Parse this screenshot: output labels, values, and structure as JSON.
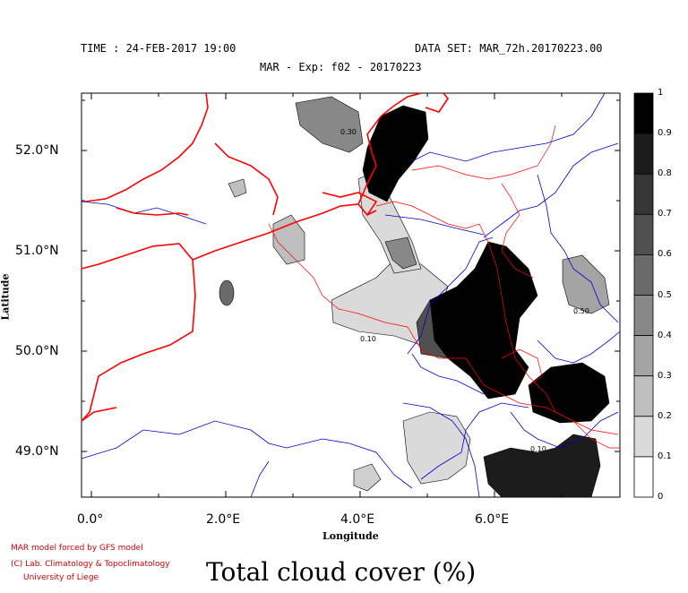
{
  "header": {
    "time": "TIME : 24-FEB-2017 19:00",
    "dataset": "DATA SET: MAR_72h.20170223.00",
    "experiment": "MAR - Exp: f02 - 20170223"
  },
  "axes": {
    "y_ticks": [
      "52.0°N",
      "51.0°N",
      "50.0°N",
      "49.0°N"
    ],
    "x_ticks": [
      "0.0°",
      "2.0°E",
      "4.0°E",
      "6.0°E"
    ],
    "x_title": "Longitude",
    "y_title": "Latitude",
    "lon_range": [
      -0.15,
      7.75
    ],
    "lat_range": [
      48.55,
      52.58
    ]
  },
  "colorbar": {
    "labels": [
      "1",
      "0.9",
      "0.8",
      "0.7",
      "0.6",
      "0.5",
      "0.4",
      "0.3",
      "0.2",
      "0.1",
      "0"
    ],
    "colors": [
      "#000000",
      "#1c1c1c",
      "#363636",
      "#505050",
      "#6a6a6a",
      "#888888",
      "#a4a4a4",
      "#bfbfbf",
      "#dadada",
      "#ffffff"
    ]
  },
  "credits": {
    "line1": "MAR model forced by GFS model",
    "line2": "(C) Lab. Climatology & Topoclimatology",
    "line3": "University of Liege"
  },
  "title": "Total cloud cover (%)",
  "contour_labels": [
    "0.10",
    "0.30",
    "0.50",
    "0.10"
  ],
  "map_colors": {
    "coast": "#ff0000",
    "rivers": "#0000cc",
    "borders": "#ff0000"
  }
}
